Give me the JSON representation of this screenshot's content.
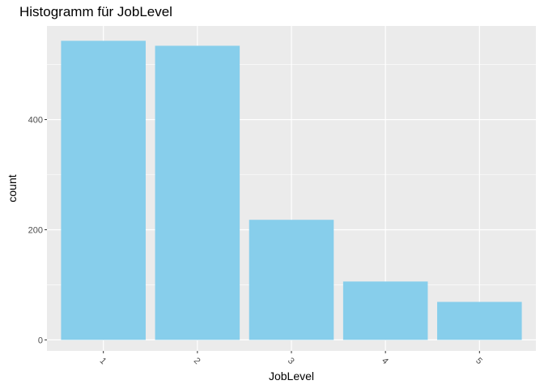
{
  "chart_data": {
    "type": "bar",
    "title": "Histogramm für JobLevel",
    "xlabel": "JobLevel",
    "ylabel": "count",
    "categories": [
      "1",
      "2",
      "3",
      "4",
      "5"
    ],
    "values": [
      543,
      534,
      218,
      106,
      69
    ],
    "ylim": [
      -20,
      570
    ],
    "yticks": [
      0,
      200,
      400
    ],
    "ytick_labels": [
      "0",
      "200",
      "400"
    ],
    "grid": true,
    "bar_color": "#87CEEB",
    "panel_color": "#EBEBEB",
    "grid_color": "#FFFFFF"
  }
}
